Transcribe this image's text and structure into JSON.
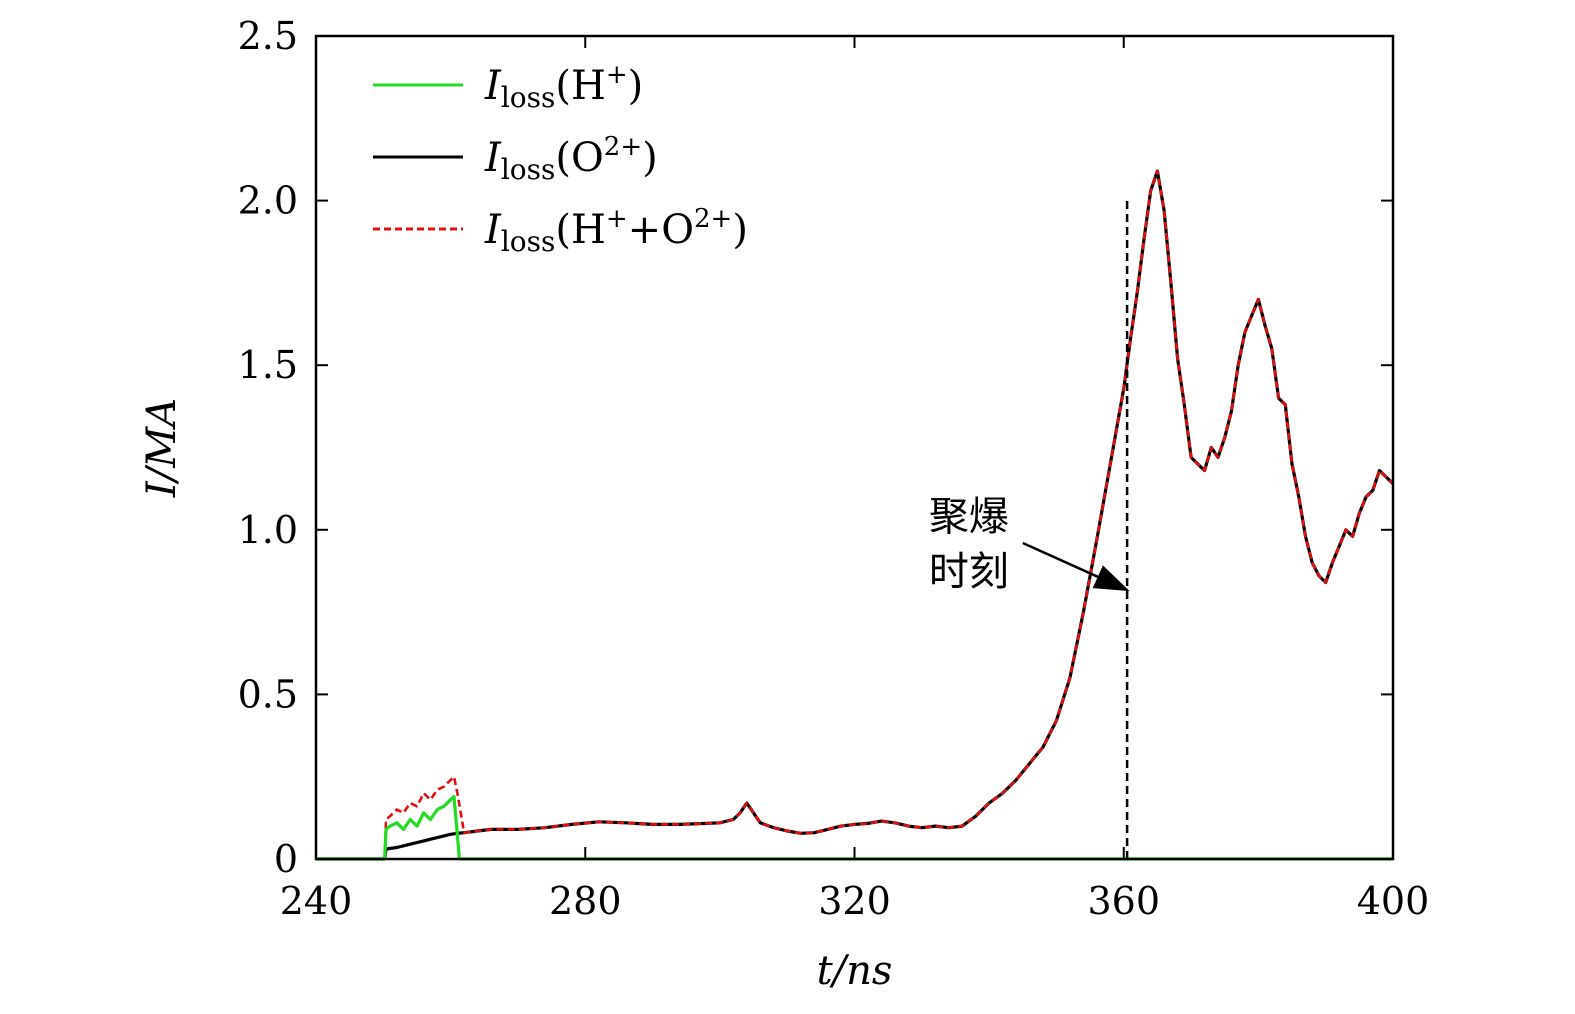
{
  "chart_data": {
    "type": "line",
    "xlabel": "t/ns",
    "ylabel": "I/MA",
    "xlim": [
      240,
      400
    ],
    "ylim": [
      0,
      2.5
    ],
    "xticks": [
      240,
      280,
      320,
      360,
      400
    ],
    "yticks": [
      0,
      0.5,
      1.0,
      1.5,
      2.0,
      2.5
    ],
    "xtick_labels": [
      "240",
      "280",
      "320",
      "360",
      "400"
    ],
    "ytick_labels": [
      "0",
      "0.5",
      "1.0",
      "1.5",
      "2.0",
      "2.5"
    ],
    "grid": false,
    "legend_position": "top-left",
    "series": [
      {
        "name": "Iloss(H+)",
        "color": "#22dd22",
        "style": "solid",
        "x": [
          240,
          250.2,
          250.4,
          251,
          252,
          253,
          254,
          255,
          256,
          257,
          258,
          259,
          260,
          260.5,
          261.3,
          262,
          280,
          300,
          320,
          340,
          360,
          380,
          400
        ],
        "y": [
          0,
          0,
          0.09,
          0.1,
          0.11,
          0.09,
          0.12,
          0.1,
          0.14,
          0.12,
          0.15,
          0.16,
          0.18,
          0.19,
          0.0,
          0,
          0,
          0,
          0,
          0,
          0,
          0,
          0
        ]
      },
      {
        "name": "Iloss(O2+)",
        "color": "#000000",
        "style": "solid",
        "x": [
          240,
          250.2,
          250.4,
          252,
          254,
          256,
          258,
          260,
          261,
          262,
          264,
          266,
          270,
          274,
          278,
          282,
          286,
          290,
          294,
          298,
          300,
          302,
          303,
          304,
          305,
          306,
          308,
          310,
          312,
          314,
          316,
          318,
          320,
          322,
          324,
          326,
          328,
          330,
          332,
          334,
          336,
          338,
          340,
          342,
          344,
          346,
          348,
          350,
          352,
          354,
          356,
          358,
          360,
          361,
          362,
          363,
          364,
          365,
          366,
          367,
          368,
          369,
          370,
          371,
          372,
          373,
          374,
          375,
          376,
          377,
          378,
          379,
          380,
          381,
          382,
          383,
          384,
          385,
          386,
          387,
          388,
          389,
          390,
          391,
          392,
          393,
          394,
          395,
          396,
          397,
          398,
          399,
          400
        ],
        "y": [
          0,
          0,
          0.03,
          0.035,
          0.045,
          0.055,
          0.065,
          0.075,
          0.078,
          0.08,
          0.085,
          0.09,
          0.09,
          0.095,
          0.105,
          0.113,
          0.11,
          0.105,
          0.105,
          0.108,
          0.11,
          0.12,
          0.14,
          0.17,
          0.14,
          0.11,
          0.095,
          0.085,
          0.078,
          0.08,
          0.09,
          0.1,
          0.105,
          0.108,
          0.115,
          0.11,
          0.1,
          0.095,
          0.1,
          0.095,
          0.1,
          0.13,
          0.17,
          0.2,
          0.24,
          0.29,
          0.34,
          0.42,
          0.55,
          0.75,
          0.97,
          1.2,
          1.43,
          1.58,
          1.72,
          1.88,
          2.03,
          2.09,
          1.97,
          1.75,
          1.52,
          1.38,
          1.22,
          1.2,
          1.18,
          1.25,
          1.22,
          1.28,
          1.36,
          1.5,
          1.6,
          1.65,
          1.7,
          1.62,
          1.55,
          1.4,
          1.38,
          1.2,
          1.1,
          0.98,
          0.9,
          0.86,
          0.84,
          0.9,
          0.95,
          1.0,
          0.98,
          1.05,
          1.1,
          1.12,
          1.18,
          1.16,
          1.14
        ]
      },
      {
        "name": "Iloss(H+ +O2+)",
        "color": "#e01010",
        "style": "dashed",
        "x": [
          240,
          250.2,
          250.4,
          251,
          252,
          253,
          254,
          255,
          256,
          257,
          258,
          259,
          260,
          260.5,
          261,
          262,
          264,
          266,
          270,
          274,
          278,
          282,
          286,
          290,
          294,
          298,
          300,
          302,
          303,
          304,
          305,
          306,
          308,
          310,
          312,
          314,
          316,
          318,
          320,
          322,
          324,
          326,
          328,
          330,
          332,
          334,
          336,
          338,
          340,
          342,
          344,
          346,
          348,
          350,
          352,
          354,
          356,
          358,
          360,
          361,
          362,
          363,
          364,
          365,
          366,
          367,
          368,
          369,
          370,
          371,
          372,
          373,
          374,
          375,
          376,
          377,
          378,
          379,
          380,
          381,
          382,
          383,
          384,
          385,
          386,
          387,
          388,
          389,
          390,
          391,
          392,
          393,
          394,
          395,
          396,
          397,
          398,
          399,
          400
        ],
        "y": [
          0,
          0,
          0.12,
          0.13,
          0.15,
          0.14,
          0.17,
          0.16,
          0.2,
          0.18,
          0.21,
          0.22,
          0.24,
          0.25,
          0.2,
          0.08,
          0.085,
          0.09,
          0.09,
          0.095,
          0.105,
          0.113,
          0.11,
          0.105,
          0.105,
          0.108,
          0.11,
          0.12,
          0.14,
          0.17,
          0.14,
          0.11,
          0.095,
          0.085,
          0.078,
          0.08,
          0.09,
          0.1,
          0.105,
          0.108,
          0.115,
          0.11,
          0.1,
          0.095,
          0.1,
          0.095,
          0.1,
          0.13,
          0.17,
          0.2,
          0.24,
          0.29,
          0.34,
          0.42,
          0.55,
          0.75,
          0.97,
          1.2,
          1.43,
          1.58,
          1.72,
          1.88,
          2.03,
          2.09,
          1.97,
          1.75,
          1.52,
          1.38,
          1.22,
          1.2,
          1.18,
          1.25,
          1.22,
          1.28,
          1.36,
          1.5,
          1.6,
          1.65,
          1.7,
          1.62,
          1.55,
          1.4,
          1.38,
          1.2,
          1.1,
          0.98,
          0.9,
          0.86,
          0.84,
          0.9,
          0.95,
          1.0,
          0.98,
          1.05,
          1.1,
          1.12,
          1.18,
          1.16,
          1.14
        ]
      }
    ],
    "legend": [
      {
        "base": "I",
        "sub": "loss",
        "open": "(H",
        "sup": "+",
        "mid": "",
        "sup2": "",
        "close": ")"
      },
      {
        "base": "I",
        "sub": "loss",
        "open": "(O",
        "sup": "2+",
        "mid": "",
        "sup2": "",
        "close": ")"
      },
      {
        "base": "I",
        "sub": "loss",
        "open": "(H",
        "sup": "+",
        "mid": "+O",
        "sup2": "2+",
        "close": ")"
      }
    ],
    "annotations": [
      {
        "type": "vline",
        "x": 360.5,
        "y_from": 0,
        "y_to": 2.0,
        "style": "dashed",
        "color": "#000000"
      },
      {
        "type": "arrow",
        "text_line1": "聚爆",
        "text_line2": "时刻",
        "text_x": 337,
        "text_y": 1.0,
        "from_x": 345,
        "from_y": 0.96,
        "to_x": 360.2,
        "to_y": 0.82
      }
    ]
  }
}
